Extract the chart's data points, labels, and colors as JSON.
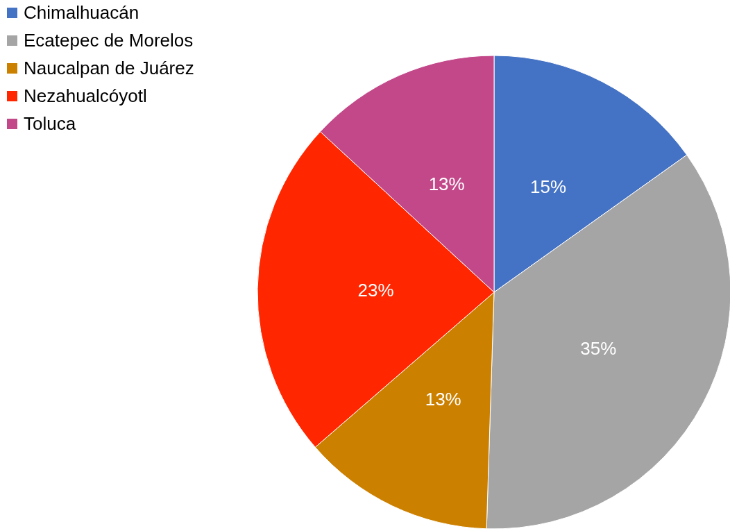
{
  "chart_data": {
    "type": "pie",
    "categories": [
      "Chimalhuacán",
      "Ecatepec de Morelos",
      "Naucalpan de Juárez",
      "Nezahualcóyotl",
      "Toluca"
    ],
    "values": [
      15,
      35,
      13,
      23,
      13
    ],
    "colors": [
      "#4472c4",
      "#a5a5a5",
      "#cc8000",
      "#ff2600",
      "#c2488a"
    ],
    "value_labels": [
      "15%",
      "35%",
      "13%",
      "23%",
      "13%"
    ],
    "legend": "top left"
  }
}
